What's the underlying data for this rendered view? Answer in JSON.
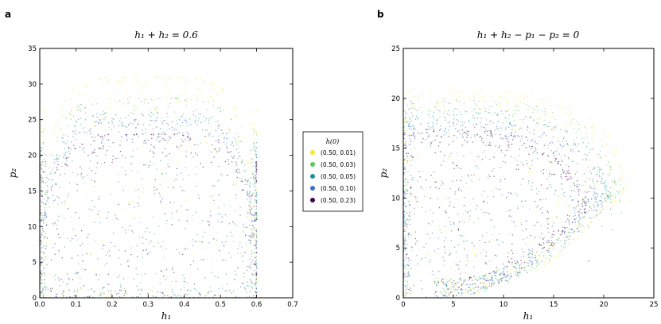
{
  "chart_data": [
    {
      "type": "scatter",
      "panel_label": "a",
      "title": "h₁ + h₂ = 0.6",
      "xlabel": "h₁",
      "ylabel": "p₂",
      "xlim": [
        0.0,
        0.7
      ],
      "ylim": [
        0,
        35
      ],
      "xticks": [
        "0.0",
        "0.1",
        "0.2",
        "0.3",
        "0.4",
        "0.5",
        "0.6",
        "0.7"
      ],
      "xtick_values": [
        0.0,
        0.1,
        0.2,
        0.3,
        0.4,
        0.5,
        0.6,
        0.7
      ],
      "yticks": [
        "0",
        "5",
        "10",
        "15",
        "20",
        "25",
        "30",
        "35"
      ],
      "ytick_values": [
        0,
        5,
        10,
        15,
        20,
        25,
        30,
        35
      ],
      "series": [
        {
          "name": "(0.50, 0.01)",
          "color": "#fde725",
          "max_p2": 31.0,
          "boundary": "square"
        },
        {
          "name": "(0.50, 0.03)",
          "color": "#5ec962",
          "max_p2": 28.0,
          "boundary": "square"
        },
        {
          "name": "(0.50, 0.05)",
          "color": "#21918c",
          "max_p2": 26.0,
          "boundary": "square"
        },
        {
          "name": "(0.50, 0.10)",
          "color": "#3b6fc9",
          "max_p2": 25.0,
          "boundary": "square"
        },
        {
          "name": "(0.50, 0.23)",
          "color": "#440154",
          "max_p2": 23.0,
          "boundary": "square"
        }
      ]
    },
    {
      "type": "scatter",
      "panel_label": "b",
      "title": "h₁ + h₂ − p₁ − p₂ = 0",
      "xlabel": "h₁",
      "ylabel": "p₂",
      "xlim": [
        0,
        25
      ],
      "ylim": [
        0,
        25
      ],
      "xticks": [
        "0",
        "5",
        "10",
        "15",
        "20",
        "25"
      ],
      "xtick_values": [
        0,
        5,
        10,
        15,
        20,
        25
      ],
      "yticks": [
        "0",
        "5",
        "10",
        "15",
        "20",
        "25"
      ],
      "ytick_values": [
        0,
        5,
        10,
        15,
        20,
        25
      ],
      "series": [
        {
          "name": "(0.50, 0.01)",
          "color": "#fde725",
          "max_h1": 23.0,
          "max_p2": 21.0,
          "boundary": "rounded"
        },
        {
          "name": "(0.50, 0.03)",
          "color": "#5ec962",
          "max_h1": 22.0,
          "max_p2": 20.0,
          "boundary": "rounded"
        },
        {
          "name": "(0.50, 0.05)",
          "color": "#21918c",
          "max_h1": 21.0,
          "max_p2": 19.0,
          "boundary": "rounded"
        },
        {
          "name": "(0.50, 0.10)",
          "color": "#3b6fc9",
          "max_h1": 20.0,
          "max_p2": 18.0,
          "boundary": "rounded"
        },
        {
          "name": "(0.50, 0.23)",
          "color": "#440154",
          "max_h1": 18.5,
          "max_p2": 17.0,
          "boundary": "rounded"
        }
      ]
    }
  ],
  "legend": {
    "title": "h(0)",
    "entries": [
      {
        "label": "(0.50,  0.01)",
        "color": "#fde725"
      },
      {
        "label": "(0.50,  0.03)",
        "color": "#5ec962"
      },
      {
        "label": "(0.50,  0.05)",
        "color": "#21918c"
      },
      {
        "label": "(0.50,  0.10)",
        "color": "#3b6fc9"
      },
      {
        "label": "(0.50,  0.23)",
        "color": "#440154"
      }
    ]
  }
}
